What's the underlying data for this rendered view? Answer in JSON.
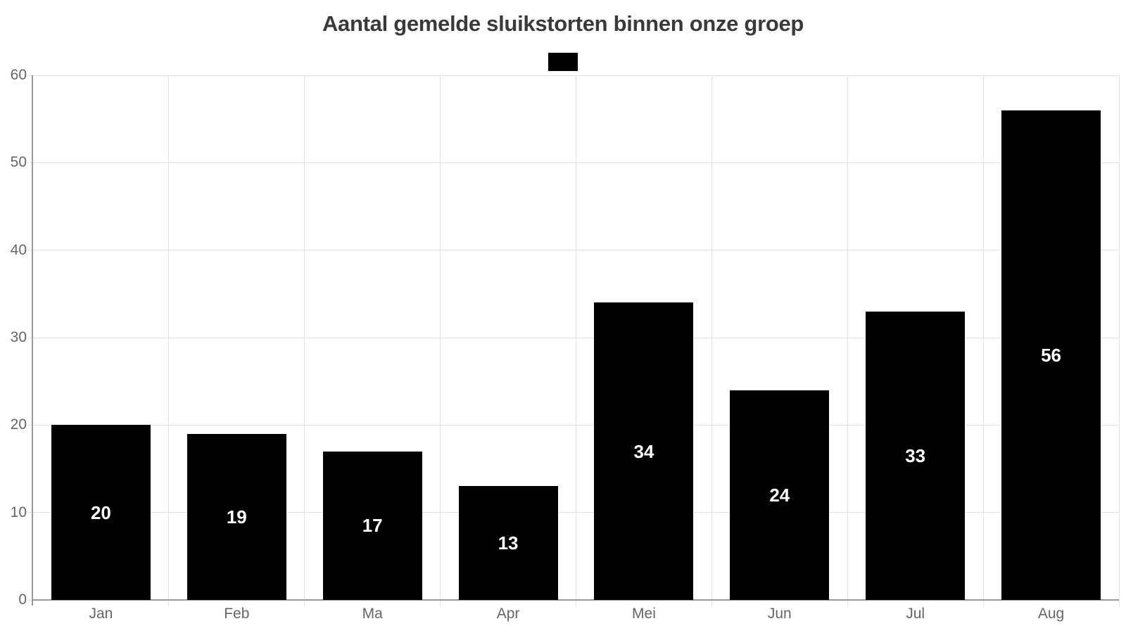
{
  "header": {
    "title": "Aantal gemelde sluikstorten binnen onze groep"
  },
  "legend": {
    "position": "top-center",
    "items": [
      {
        "label": "",
        "color": "#000000"
      }
    ]
  },
  "chart_data": {
    "type": "bar",
    "title": "Aantal gemelde sluikstorten binnen onze groep",
    "categories": [
      "Jan",
      "Feb",
      "Ma",
      "Apr",
      "Mei",
      "Jun",
      "Jul",
      "Aug"
    ],
    "values": [
      20,
      19,
      17,
      13,
      34,
      24,
      33,
      56
    ],
    "bar_labels": [
      "20",
      "19",
      "17",
      "13",
      "34",
      "24",
      "33",
      "56"
    ],
    "xlabel": "",
    "ylabel": "",
    "ylim": [
      0,
      60
    ],
    "yticks": [
      0,
      10,
      20,
      30,
      40,
      50,
      60
    ],
    "grid": true,
    "legend_position": "top",
    "colors": {
      "bar": "#000000",
      "bar_label": "#ffffff",
      "grid": "#e2e2e2",
      "axis": "#999999",
      "tick_label": "#666666",
      "title": "#3a3a3a"
    }
  }
}
